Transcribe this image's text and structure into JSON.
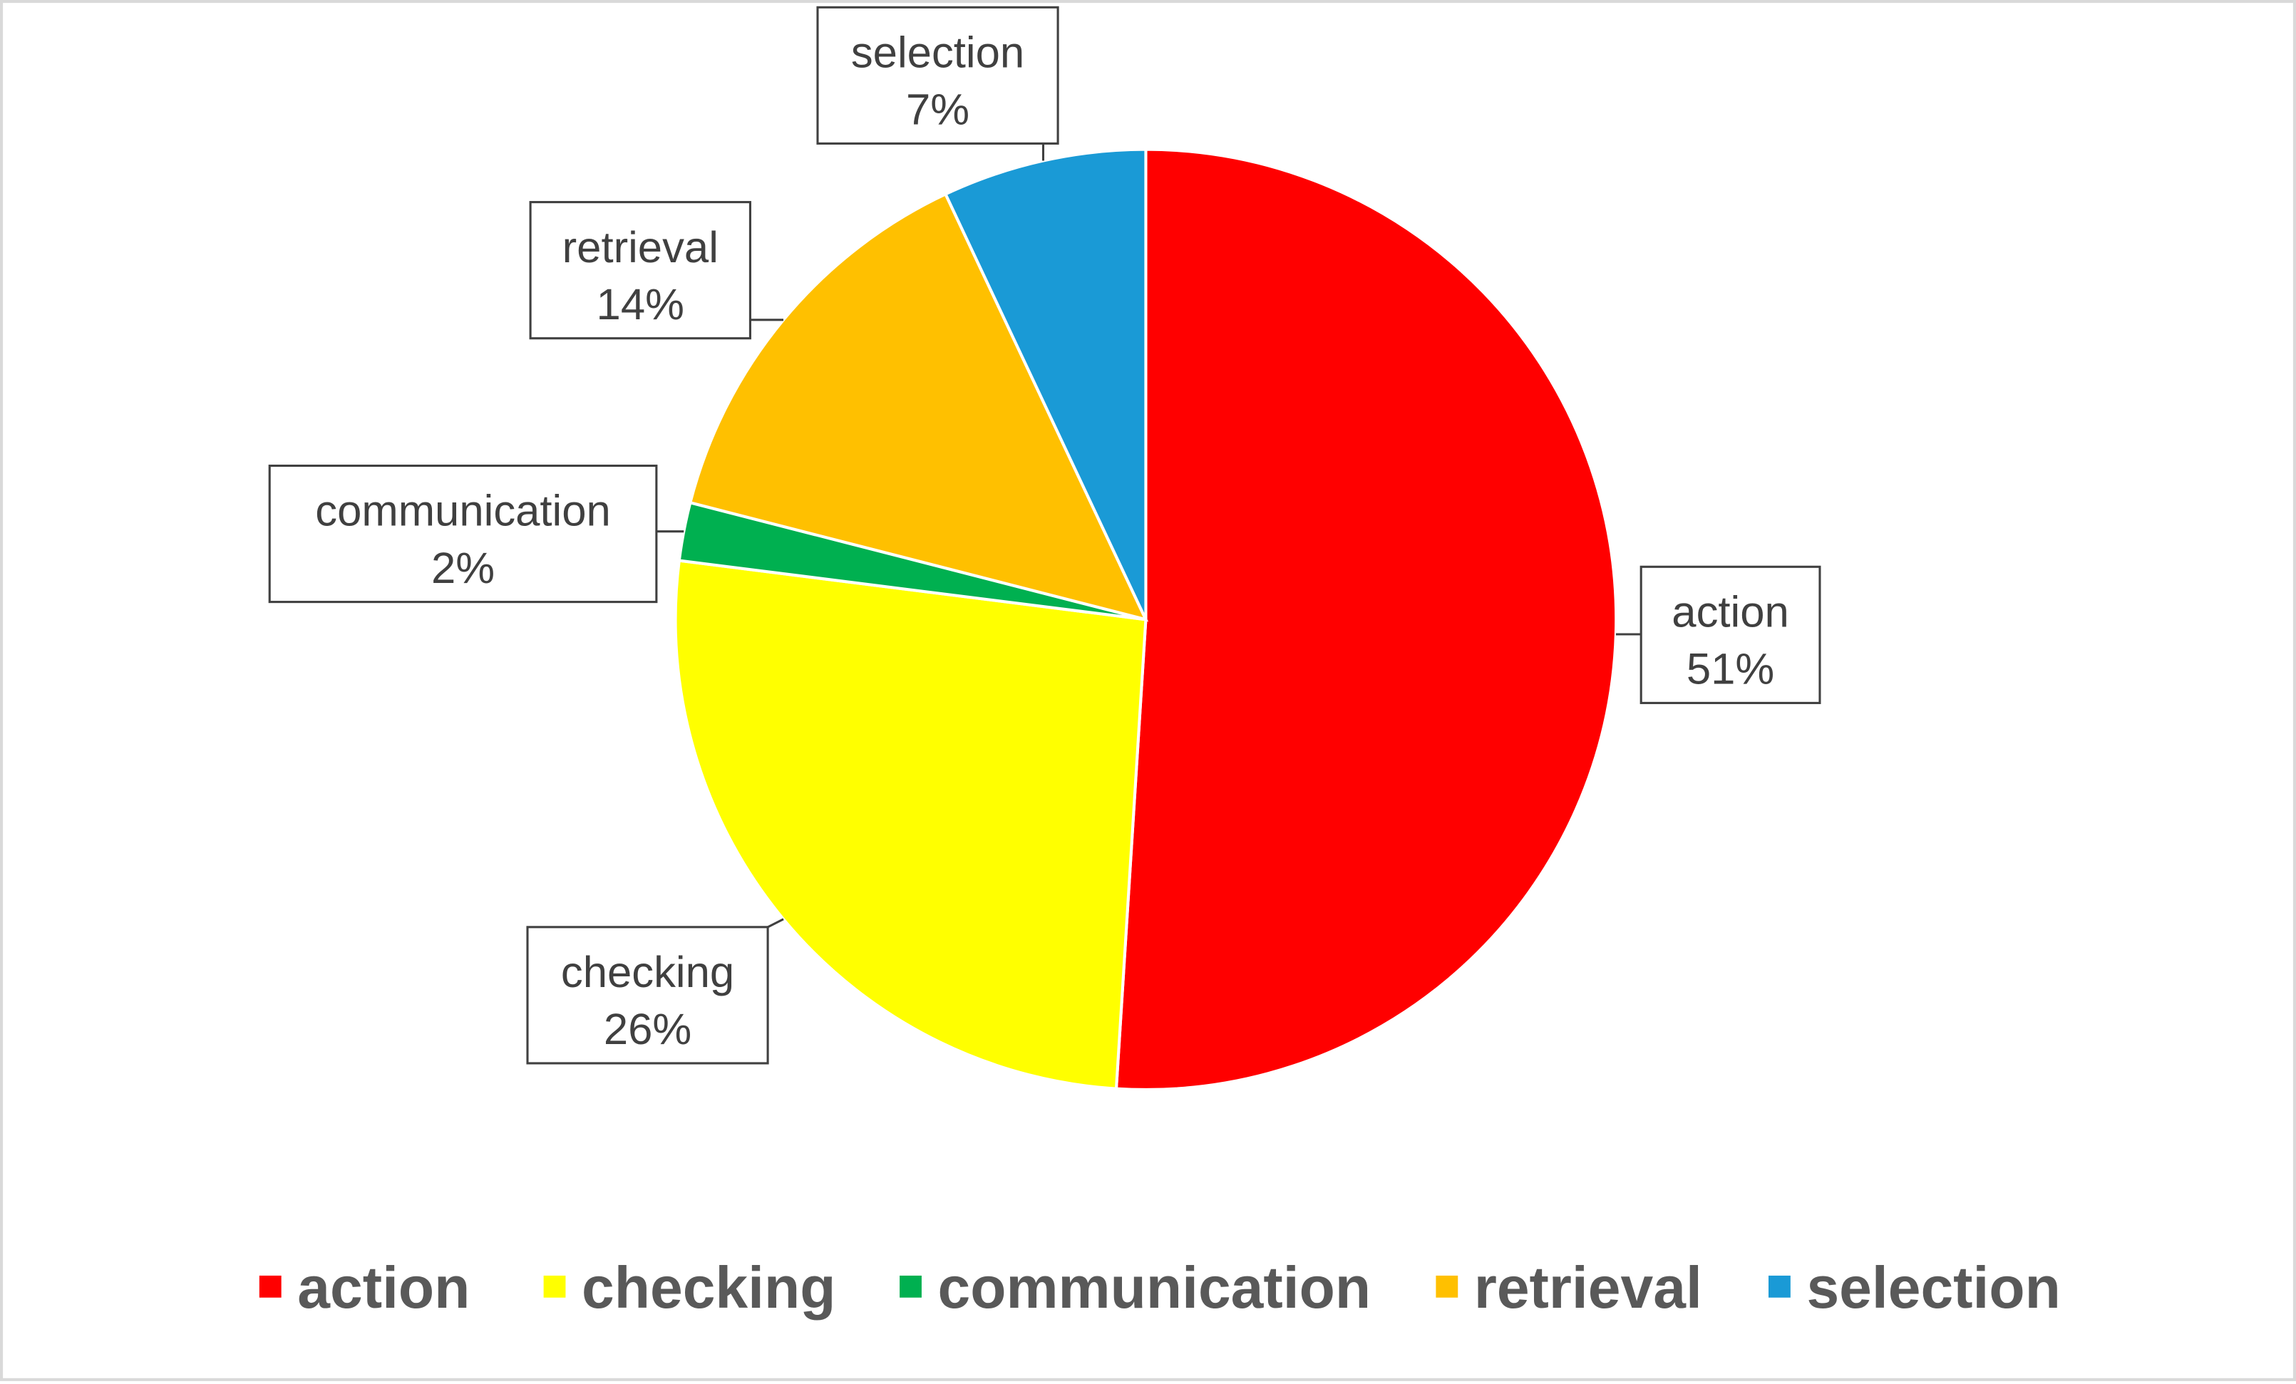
{
  "chart_data": {
    "type": "pie",
    "categories": [
      "action",
      "checking",
      "communication",
      "retrieval",
      "selection"
    ],
    "values": [
      51,
      26,
      2,
      14,
      7
    ],
    "value_labels": [
      "51%",
      "26%",
      "2%",
      "14%",
      "7%"
    ],
    "colors": [
      "#ff0000",
      "#ffff00",
      "#00b050",
      "#ffc000",
      "#1a9ad6"
    ],
    "legend": "bottom"
  }
}
